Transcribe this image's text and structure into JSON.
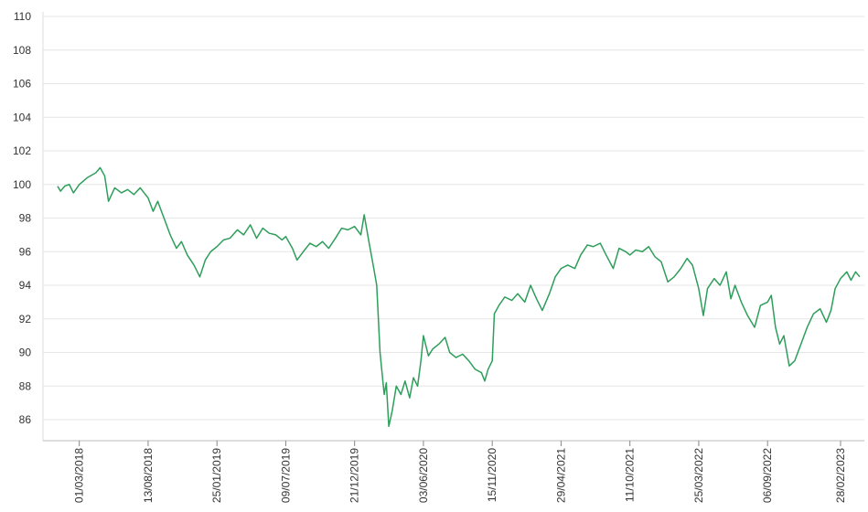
{
  "chart_data": {
    "type": "line",
    "x": [
      "08/01/2018",
      "15/01/2018",
      "25/01/2018",
      "05/02/2018",
      "15/02/2018",
      "01/03/2018",
      "20/03/2018",
      "10/04/2018",
      "20/04/2018",
      "01/05/2018",
      "10/05/2018",
      "25/05/2018",
      "10/06/2018",
      "25/06/2018",
      "10/07/2018",
      "25/07/2018",
      "13/08/2018",
      "25/08/2018",
      "05/09/2018",
      "20/09/2018",
      "05/10/2018",
      "20/10/2018",
      "01/11/2018",
      "15/11/2018",
      "01/12/2018",
      "15/12/2018",
      "28/12/2018",
      "10/01/2019",
      "25/01/2019",
      "10/02/2019",
      "25/02/2019",
      "15/03/2019",
      "30/03/2019",
      "15/04/2019",
      "30/04/2019",
      "15/05/2019",
      "30/05/2019",
      "15/06/2019",
      "30/06/2019",
      "09/07/2019",
      "25/07/2019",
      "05/08/2019",
      "20/08/2019",
      "05/09/2019",
      "20/09/2019",
      "05/10/2019",
      "20/10/2019",
      "05/11/2019",
      "20/11/2019",
      "05/12/2019",
      "21/12/2019",
      "05/01/2020",
      "13/01/2020",
      "25/01/2020",
      "05/02/2020",
      "12/02/2020",
      "20/02/2020",
      "01/03/2020",
      "06/03/2020",
      "12/03/2020",
      "20/03/2020",
      "30/03/2020",
      "10/04/2020",
      "20/04/2020",
      "01/05/2020",
      "10/05/2020",
      "20/05/2020",
      "28/05/2020",
      "03/06/2020",
      "15/06/2020",
      "25/06/2020",
      "10/07/2020",
      "25/07/2020",
      "05/08/2020",
      "20/08/2020",
      "05/09/2020",
      "20/09/2020",
      "05/10/2020",
      "20/10/2020",
      "28/10/2020",
      "05/11/2020",
      "15/11/2020",
      "20/11/2020",
      "01/12/2020",
      "15/12/2020",
      "01/01/2021",
      "15/01/2021",
      "01/02/2021",
      "15/02/2021",
      "01/03/2021",
      "15/03/2021",
      "01/04/2021",
      "15/04/2021",
      "29/04/2021",
      "15/05/2021",
      "01/06/2021",
      "15/06/2021",
      "01/07/2021",
      "15/07/2021",
      "01/08/2021",
      "15/08/2021",
      "01/09/2021",
      "15/09/2021",
      "01/10/2021",
      "11/10/2021",
      "25/10/2021",
      "10/11/2021",
      "25/11/2021",
      "10/12/2021",
      "25/12/2021",
      "10/01/2022",
      "25/01/2022",
      "10/02/2022",
      "25/02/2022",
      "10/03/2022",
      "25/03/2022",
      "05/04/2022",
      "15/04/2022",
      "01/05/2022",
      "15/05/2022",
      "30/05/2022",
      "10/06/2022",
      "20/06/2022",
      "05/07/2022",
      "20/07/2022",
      "06/08/2022",
      "20/08/2022",
      "06/09/2022",
      "15/09/2022",
      "25/09/2022",
      "05/10/2022",
      "15/10/2022",
      "28/10/2022",
      "10/11/2022",
      "25/11/2022",
      "10/12/2022",
      "25/12/2022",
      "10/01/2023",
      "25/01/2023",
      "05/02/2023",
      "15/02/2023",
      "28/02/2023",
      "15/03/2023",
      "25/03/2023",
      "05/04/2023",
      "15/04/2023"
    ],
    "series": [
      {
        "color": "#2e9e5b",
        "values": [
          99.9,
          99.6,
          99.9,
          100.0,
          99.5,
          100.0,
          100.4,
          100.7,
          101.0,
          100.5,
          99.0,
          99.8,
          99.5,
          99.7,
          99.4,
          99.8,
          99.2,
          98.4,
          99.0,
          98.0,
          97.0,
          96.2,
          96.6,
          95.8,
          95.2,
          94.5,
          95.5,
          96.0,
          96.3,
          96.7,
          96.8,
          97.3,
          97.0,
          97.6,
          96.8,
          97.4,
          97.1,
          97.0,
          96.7,
          96.9,
          96.2,
          95.5,
          96.0,
          96.5,
          96.3,
          96.6,
          96.2,
          96.8,
          97.4,
          97.3,
          97.5,
          97.0,
          98.2,
          96.5,
          95.0,
          94.0,
          90.0,
          87.5,
          88.2,
          85.6,
          86.5,
          88.0,
          87.5,
          88.3,
          87.3,
          88.5,
          88.0,
          89.5,
          91.0,
          89.8,
          90.2,
          90.5,
          90.9,
          90.0,
          89.7,
          89.9,
          89.5,
          89.0,
          88.8,
          88.3,
          89.0,
          89.5,
          92.3,
          92.8,
          93.3,
          93.1,
          93.5,
          93.0,
          94.0,
          93.2,
          92.5,
          93.5,
          94.5,
          95.0,
          95.2,
          95.0,
          95.8,
          96.4,
          96.3,
          96.5,
          95.8,
          95.0,
          96.2,
          96.0,
          95.8,
          96.1,
          96.0,
          96.3,
          95.7,
          95.4,
          94.2,
          94.5,
          95.0,
          95.6,
          95.2,
          93.8,
          92.2,
          93.8,
          94.4,
          94.0,
          94.8,
          93.2,
          94.0,
          93.0,
          92.2,
          91.5,
          92.8,
          93.0,
          93.4,
          91.5,
          90.5,
          91.0,
          89.2,
          89.5,
          90.5,
          91.5,
          92.3,
          92.6,
          91.8,
          92.5,
          93.8,
          94.4,
          94.8,
          94.3,
          94.8,
          94.5
        ]
      }
    ],
    "xlim": [
      "04/12/2017",
      "26/04/2023"
    ],
    "xticks": [
      "01/03/2018",
      "13/08/2018",
      "25/01/2019",
      "09/07/2019",
      "21/12/2019",
      "03/06/2020",
      "15/11/2020",
      "29/04/2021",
      "11/10/2021",
      "25/03/2022",
      "06/09/2022",
      "28/02/2023"
    ],
    "ylim": [
      84.75,
      110
    ],
    "yticks": [
      86,
      88,
      90,
      92,
      94,
      96,
      98,
      100,
      102,
      104,
      106,
      108,
      110
    ],
    "grid": true
  }
}
